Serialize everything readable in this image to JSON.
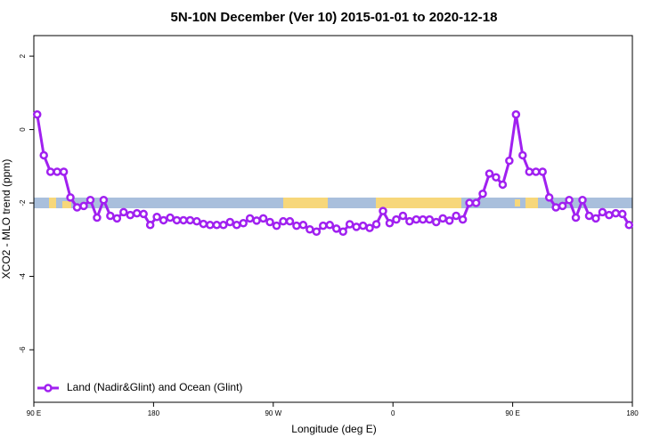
{
  "chart_data": {
    "type": "line",
    "title": "5N-10N December (Ver 10)   2015-01-01 to 2020-12-18",
    "x_label": "Longitude (deg E)",
    "y_label": "XCO2 - MLO trend (ppm)",
    "xlim": [
      90,
      540
    ],
    "ylim": [
      -7.43,
      2.56
    ],
    "xticks": [
      {
        "value": 90,
        "label": "90 E"
      },
      180,
      {
        "value": 270,
        "label": "90 W"
      },
      {
        "value": 360,
        "label": "0"
      },
      {
        "value": 450,
        "label": "90 E"
      },
      {
        "value": 540,
        "label": "180"
      }
    ],
    "yticks": [
      2,
      0,
      -2,
      -4,
      -6
    ],
    "legend": "bottom-left",
    "x": [
      92.5,
      97.5,
      102.5,
      107.5,
      112.5,
      117.5,
      122.5,
      127.5,
      132.5,
      137.5,
      142.5,
      147.5,
      152.5,
      157.5,
      162.5,
      167.5,
      172.5,
      177.5,
      182.5,
      187.5,
      192.5,
      197.5,
      202.5,
      207.5,
      212.5,
      217.5,
      222.5,
      227.5,
      232.5,
      237.5,
      242.5,
      247.5,
      252.5,
      257.5,
      262.5,
      267.5,
      272.5,
      277.5,
      282.5,
      287.5,
      292.5,
      297.5,
      302.5,
      307.5,
      312.5,
      317.5,
      322.5,
      327.5,
      332.5,
      337.5,
      342.5,
      347.5,
      352.5,
      357.5,
      362.5,
      367.5,
      372.5,
      377.5,
      382.5,
      387.5,
      392.5,
      397.5,
      402.5,
      407.5,
      412.5,
      417.5,
      422.5,
      427.5,
      432.5,
      437.5,
      442.5,
      447.5,
      452.5,
      457.5,
      462.5,
      467.5,
      472.5,
      477.5,
      482.5,
      487.5,
      492.5,
      497.5,
      502.5,
      507.5,
      512.5,
      517.5,
      522.5,
      527.5,
      532.5,
      537.5
    ],
    "series": [
      {
        "name": "Land (Nadir&Glint) and Ocean (Glint)",
        "color": "#a020f0",
        "values": [
          0.41,
          -0.7,
          -1.15,
          -1.15,
          -1.15,
          -1.85,
          -2.12,
          -2.08,
          -1.92,
          -2.4,
          -1.92,
          -2.35,
          -2.42,
          -2.25,
          -2.33,
          -2.28,
          -2.3,
          -2.6,
          -2.38,
          -2.47,
          -2.4,
          -2.47,
          -2.47,
          -2.47,
          -2.5,
          -2.57,
          -2.6,
          -2.6,
          -2.6,
          -2.52,
          -2.6,
          -2.55,
          -2.42,
          -2.48,
          -2.42,
          -2.52,
          -2.62,
          -2.5,
          -2.5,
          -2.62,
          -2.6,
          -2.72,
          -2.78,
          -2.62,
          -2.6,
          -2.7,
          -2.78,
          -2.58,
          -2.65,
          -2.62,
          -2.68,
          -2.58,
          -2.22,
          -2.55,
          -2.45,
          -2.35,
          -2.5,
          -2.45,
          -2.45,
          -2.45,
          -2.52,
          -2.42,
          -2.48,
          -2.35,
          -2.45,
          -2.0,
          -2.0,
          -1.75,
          -1.2,
          -1.3,
          -1.5,
          -0.85,
          0.41,
          -0.7,
          -1.15,
          -1.15,
          -1.15,
          -1.85,
          -2.12,
          -2.08,
          -1.92,
          -2.4,
          -1.92,
          -2.35,
          -2.42,
          -2.25,
          -2.33,
          -2.28,
          -2.3,
          -2.6
        ]
      }
    ]
  }
}
